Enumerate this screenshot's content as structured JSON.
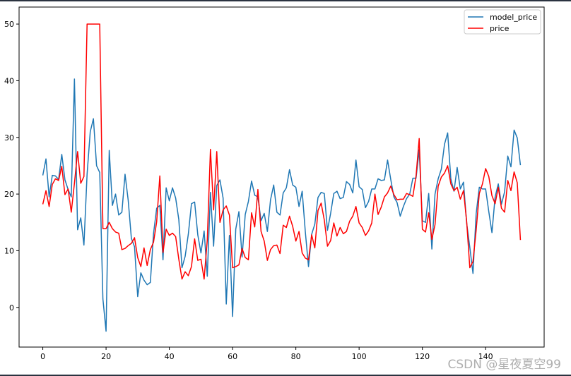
{
  "chart_data": {
    "type": "line",
    "title": "",
    "xlabel": "",
    "ylabel": "",
    "xlim": [
      -7.5,
      158.5
    ],
    "ylim": [
      -7,
      53
    ],
    "xticks": [
      0,
      20,
      40,
      60,
      80,
      100,
      120,
      140
    ],
    "yticks": [
      0,
      10,
      20,
      30,
      40,
      50
    ],
    "grid": false,
    "legend": "top-right",
    "series": [
      {
        "name": "model_price",
        "color": "#1f77b4",
        "values": [
          23.3,
          26.2,
          19.5,
          23.3,
          23.2,
          22.6,
          27.0,
          22.5,
          20.8,
          19.5,
          40.3,
          13.7,
          15.8,
          11.0,
          23.5,
          31.0,
          33.3,
          25.0,
          23.8,
          1.5,
          -4.2,
          27.7,
          18.0,
          20.0,
          16.3,
          16.8,
          23.5,
          18.9,
          12.2,
          10.7,
          1.9,
          6.1,
          4.8,
          4.0,
          4.4,
          13.0,
          17.5,
          18.0,
          8.4,
          21.1,
          18.8,
          21.1,
          19.3,
          15.5,
          7.0,
          9.0,
          12.9,
          18.3,
          18.6,
          12.8,
          9.6,
          13.5,
          5.5,
          20.3,
          10.8,
          21.5,
          22.5,
          19.3,
          0.6,
          12.7,
          -1.6,
          13.8,
          16.9,
          8.9,
          16.4,
          18.7,
          22.3,
          19.8,
          19.5,
          15.3,
          16.6,
          13.4,
          19.0,
          21.6,
          16.8,
          16.3,
          20.2,
          21.1,
          24.3,
          21.6,
          21.2,
          17.8,
          20.5,
          13.3,
          7.2,
          12.9,
          14.7,
          19.4,
          20.3,
          20.1,
          13.6,
          16.6,
          20.1,
          20.5,
          19.2,
          19.4,
          22.2,
          21.7,
          20.2,
          26.0,
          21.3,
          20.8,
          17.6,
          18.7,
          20.9,
          20.9,
          22.7,
          22.4,
          22.5,
          26.0,
          22.6,
          19.5,
          18.5,
          16.1,
          17.8,
          19.2,
          20.0,
          22.8,
          22.8,
          27.8,
          15.3,
          15.0,
          20.1,
          10.3,
          20.0,
          22.7,
          24.4,
          28.8,
          30.8,
          22.7,
          20.5,
          24.7,
          20.9,
          22.1,
          14.9,
          10.6,
          6.0,
          16.5,
          21.2,
          20.9,
          20.9,
          16.9,
          13.2,
          19.5,
          21.8,
          18.2,
          20.4,
          26.7,
          24.8,
          31.3,
          29.9,
          25.1
        ]
      },
      {
        "name": "price",
        "color": "#ff0000",
        "values": [
          18.2,
          20.6,
          17.8,
          21.7,
          22.7,
          22.4,
          24.9,
          19.9,
          20.9,
          16.8,
          21.9,
          27.5,
          21.9,
          23.1,
          50.0,
          50.0,
          50.0,
          50.0,
          50.0,
          13.9,
          13.9,
          15.0,
          13.9,
          13.3,
          13.1,
          10.2,
          10.4,
          10.9,
          11.3,
          12.3,
          8.8,
          7.2,
          10.5,
          7.4,
          10.2,
          11.5,
          15.1,
          23.2,
          9.7,
          13.8,
          12.7,
          13.1,
          12.5,
          8.5,
          5.0,
          6.3,
          5.6,
          7.2,
          12.1,
          8.3,
          8.5,
          5.0,
          11.9,
          27.9,
          17.2,
          27.5,
          15.0,
          17.2,
          17.9,
          16.3,
          7.0,
          7.2,
          7.5,
          10.4,
          8.8,
          8.4,
          16.7,
          14.2,
          20.8,
          13.4,
          11.7,
          8.3,
          10.2,
          10.9,
          11.0,
          9.5,
          14.5,
          14.1,
          16.1,
          14.3,
          11.7,
          13.4,
          9.6,
          8.7,
          8.4,
          12.8,
          10.5,
          17.1,
          18.4,
          15.4,
          10.8,
          11.8,
          14.9,
          12.6,
          14.1,
          13.0,
          13.4,
          15.2,
          16.1,
          17.8,
          14.9,
          14.1,
          12.7,
          13.5,
          14.9,
          20.0,
          16.4,
          17.7,
          19.5,
          20.2,
          21.4,
          19.9,
          19.0,
          19.1,
          19.1,
          20.1,
          19.9,
          19.6,
          23.2,
          29.8,
          13.8,
          13.3,
          16.7,
          12.0,
          14.6,
          21.4,
          23.0,
          23.7,
          25.0,
          21.8,
          20.6,
          21.2,
          19.1,
          20.6,
          15.2,
          7.0,
          8.1,
          13.6,
          20.1,
          21.8,
          24.5,
          23.1,
          19.7,
          18.3,
          21.2,
          17.5,
          16.8,
          22.4,
          20.6,
          23.9,
          22.0,
          11.9
        ]
      }
    ]
  },
  "watermark": {
    "text": "CSDN @星夜夏空99"
  }
}
